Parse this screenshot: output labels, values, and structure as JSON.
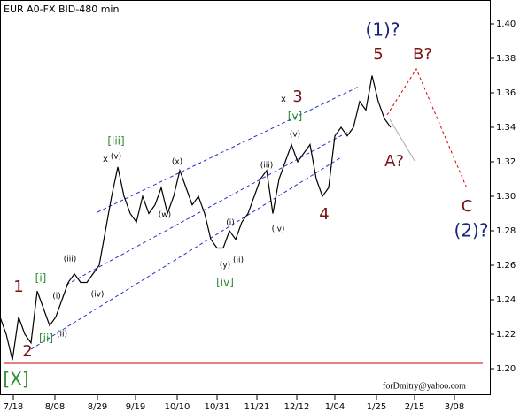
{
  "chart_data": {
    "type": "line",
    "title": "EUR A0-FX BID-480 min",
    "credit": "forDmitry@yahoo.com",
    "date_labels": [
      "7/18",
      "8/08",
      "8/29",
      "9/19",
      "10/10",
      "10/31",
      "11/21",
      "12/12",
      "1/04",
      "1/25",
      "2/15",
      "3/08"
    ],
    "series": [
      {
        "name": "EUR",
        "color": "#000000",
        "values": [
          1.23,
          1.22,
          1.205,
          1.23,
          1.22,
          1.215,
          1.245,
          1.235,
          1.225,
          1.23,
          1.24,
          1.25,
          1.255,
          1.25,
          1.25,
          1.255,
          1.26,
          1.28,
          1.3,
          1.317,
          1.3,
          1.29,
          1.285,
          1.3,
          1.29,
          1.295,
          1.305,
          1.29,
          1.3,
          1.315,
          1.305,
          1.295,
          1.3,
          1.29,
          1.275,
          1.27,
          1.27,
          1.28,
          1.275,
          1.285,
          1.29,
          1.3,
          1.31,
          1.315,
          1.29,
          1.31,
          1.32,
          1.33,
          1.32,
          1.325,
          1.33,
          1.31,
          1.3,
          1.305,
          1.335,
          1.34,
          1.335,
          1.34,
          1.355,
          1.35,
          1.37,
          1.355,
          1.345,
          1.34
        ]
      }
    ],
    "ylim": [
      1.2,
      1.4
    ],
    "yticks": [
      {
        "value": 1.4,
        "label": "1.40"
      },
      1.38,
      1.36,
      1.34,
      1.32,
      {
        "value": 1.3,
        "label": "1.30"
      },
      1.28,
      1.26,
      1.24,
      1.22,
      {
        "value": 1.2,
        "label": "1.20"
      }
    ],
    "annotations": [
      "(1)?",
      "5",
      "B?",
      "x",
      "3",
      "[v]",
      "(v)",
      "[iii]",
      "x",
      "(v)",
      "(x)",
      "(iii)",
      "A?",
      "C",
      "(2)?",
      "4",
      "(i)",
      "(iv)",
      "(w)",
      "1",
      "[i]",
      "(iii)",
      "(i)",
      "(iv)",
      "(ii)",
      "[ii]",
      "2",
      "[X]",
      "(y)",
      "(ii)",
      "[iv]"
    ]
  }
}
